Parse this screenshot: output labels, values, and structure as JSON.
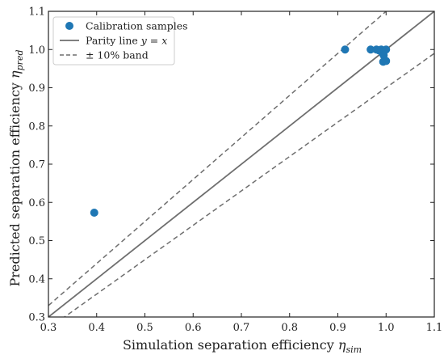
{
  "chart_data": {
    "type": "scatter",
    "xlim": [
      0.3,
      1.1
    ],
    "ylim": [
      0.3,
      1.1
    ],
    "xticks": [
      "0.3",
      "0.4",
      "0.5",
      "0.6",
      "0.7",
      "0.8",
      "0.9",
      "1.0",
      "1.1"
    ],
    "yticks": [
      "0.3",
      "0.4",
      "0.5",
      "0.6",
      "0.7",
      "0.8",
      "0.9",
      "1.0",
      "1.1"
    ],
    "xlabel": {
      "text": "Simulation separation efficiency ",
      "symbol": "η",
      "subscript": "sim"
    },
    "ylabel": {
      "text": "Predicted separation efficiency ",
      "symbol": "η",
      "subscript": "pred"
    },
    "grid": false,
    "legend_position": "top-left",
    "colors": {
      "points": "#1f77b4",
      "lines": "#6e6e6e"
    },
    "series": [
      {
        "name": "Calibration samples",
        "type": "scatter",
        "points": [
          {
            "x": 0.395,
            "y": 0.573
          },
          {
            "x": 0.915,
            "y": 1.0
          },
          {
            "x": 0.968,
            "y": 1.0
          },
          {
            "x": 0.98,
            "y": 1.0
          },
          {
            "x": 0.985,
            "y": 0.998
          },
          {
            "x": 0.99,
            "y": 1.0
          },
          {
            "x": 0.992,
            "y": 0.992
          },
          {
            "x": 0.995,
            "y": 0.985
          },
          {
            "x": 0.994,
            "y": 0.968
          },
          {
            "x": 1.0,
            "y": 0.97
          },
          {
            "x": 1.0,
            "y": 1.0
          }
        ]
      },
      {
        "name": "Parity line y = x",
        "type": "line",
        "style": "solid",
        "label_parts": [
          "Parity line ",
          "y",
          " = ",
          "x"
        ]
      },
      {
        "name": "± 10% band",
        "type": "band",
        "style": "dashed",
        "upper_factor": 1.1,
        "lower_factor": 0.9
      }
    ]
  }
}
